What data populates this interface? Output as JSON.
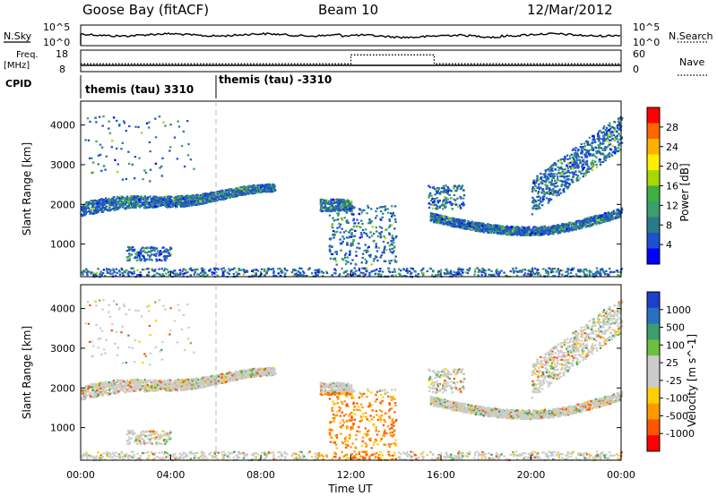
{
  "header": {
    "station": "Goose Bay (fitACF)",
    "beam": "Beam 10",
    "date": "12/Mar/2012"
  },
  "status_panels": {
    "nsky_label": "N.Sky",
    "nsearch_label": "N.Search",
    "freq_label": "Freq.",
    "freq_unit": "[MHz]",
    "nave_label": "Nave",
    "cpid_label": "CPID",
    "noise_ticks": [
      "10^5",
      "10^0"
    ],
    "noise_right_ticks": [
      "10^5",
      "10^0"
    ],
    "freq_ticks": [
      "18",
      "8"
    ],
    "nave_ticks": [
      "60",
      "0"
    ],
    "cpid_segments": [
      {
        "start_hour": 0,
        "end_hour": 6,
        "label": "themis (tau) 3310"
      },
      {
        "start_hour": 6,
        "end_hour": 24,
        "label": "themis (tau) -3310"
      }
    ],
    "nave_series": {
      "times_hours": [
        0,
        12,
        12,
        15.7,
        15.7,
        24
      ],
      "values": [
        20,
        20,
        50,
        50,
        20,
        20
      ]
    }
  },
  "chart_data": [
    {
      "type": "heatmap",
      "panel": "power",
      "ylabel": "Slant Range [km]",
      "yticks": [
        1000,
        2000,
        3000,
        4000
      ],
      "ylim": [
        180,
        4600
      ],
      "xlim": [
        0,
        24
      ],
      "colorbar_label": "Power [dB]",
      "colorbar_ticks": [
        "28",
        "24",
        "20",
        "16",
        "12",
        "8",
        "4"
      ],
      "colorbar_colors": [
        "#ff0000",
        "#ff6600",
        "#ffb000",
        "#ffee00",
        "#a8d800",
        "#3cb040",
        "#3a9e6e",
        "#2a7a8a",
        "#1e4fd0",
        "#0000ff"
      ],
      "dashed_marker_hour": 6,
      "features": [
        {
          "name": "evening band",
          "start_hour": 0,
          "end_hour": 8.5,
          "range_start_km": [
            1800,
            2300
          ],
          "range_end_km": [
            2300,
            2600
          ]
        },
        {
          "name": "late band",
          "start_hour": 15.5,
          "end_hour": 24,
          "range_start_km": [
            1600,
            1900
          ],
          "range_end_km": [
            1700,
            2100
          ]
        }
      ]
    },
    {
      "type": "heatmap",
      "panel": "velocity",
      "ylabel": "Slant Range [km]",
      "yticks": [
        1000,
        2000,
        3000,
        4000
      ],
      "ylim": [
        180,
        4600
      ],
      "xlim": [
        0,
        24
      ],
      "xlabel": "Time UT",
      "xticks": [
        "00:00",
        "04:00",
        "08:00",
        "12:00",
        "16:00",
        "20:00",
        "00:00"
      ],
      "colorbar_label": "Velocity [m s^-1]",
      "colorbar_ticks": [
        "1000",
        "500",
        "100",
        "25",
        "-25",
        "-100",
        "-500",
        "-1000"
      ],
      "colorbar_colors": [
        "#1e3fc8",
        "#2a70c0",
        "#3a9e6e",
        "#6cc040",
        "#cccccc",
        "#cccccc",
        "#ffd000",
        "#ff9900",
        "#ff5500",
        "#ff0000"
      ],
      "dashed_marker_hour": 6
    }
  ]
}
